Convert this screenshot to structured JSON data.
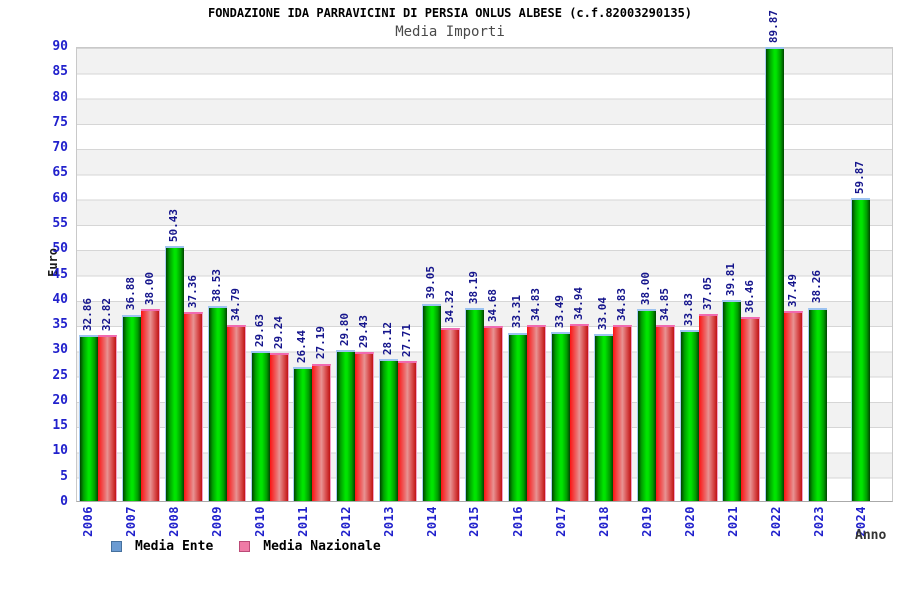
{
  "chart_data": {
    "type": "bar",
    "title": "FONDAZIONE IDA PARRAVICINI DI PERSIA ONLUS ALBESE (c.f.82003290135)",
    "subtitle": "Media Importi",
    "xlabel": "Anno",
    "ylabel": "Euro",
    "ylim": [
      0,
      90
    ],
    "ytick_step": 5,
    "grid": "horizontal-bands-every-5",
    "legend_position": "bottom-left",
    "value_label_format": "two-decimals",
    "categories": [
      "2006",
      "2007",
      "2008",
      "2009",
      "2010",
      "2011",
      "2012",
      "2013",
      "2014",
      "2015",
      "2016",
      "2017",
      "2018",
      "2019",
      "2020",
      "2021",
      "2022",
      "2023",
      "2024"
    ],
    "series": [
      {
        "name": "Media Ente",
        "legend_color": "#6b9bd2",
        "bar_color": "#00c800",
        "values": [
          32.86,
          36.88,
          50.43,
          38.53,
          29.63,
          26.44,
          29.8,
          28.12,
          39.05,
          38.19,
          33.31,
          33.49,
          33.04,
          38.0,
          33.83,
          39.81,
          89.87,
          38.26,
          59.87
        ]
      },
      {
        "name": "Media Nazionale",
        "legend_color": "#ef7ba6",
        "bar_color": "#e87070",
        "values": [
          32.82,
          38.0,
          37.36,
          34.79,
          29.24,
          27.19,
          29.43,
          27.71,
          34.32,
          34.68,
          34.83,
          34.94,
          34.83,
          34.85,
          37.05,
          36.46,
          37.49,
          null,
          null
        ]
      }
    ],
    "colors": {
      "axis_text": "#2121cc",
      "value_text": "#15158c",
      "band_gray": "#f2f2f2",
      "grid_line": "#d6d6d6",
      "title_text": "#000000",
      "subtitle_text": "#4a4a4a",
      "ente_cap": "#9cc3f0",
      "nazionale_cap": "#f06ab0"
    }
  }
}
